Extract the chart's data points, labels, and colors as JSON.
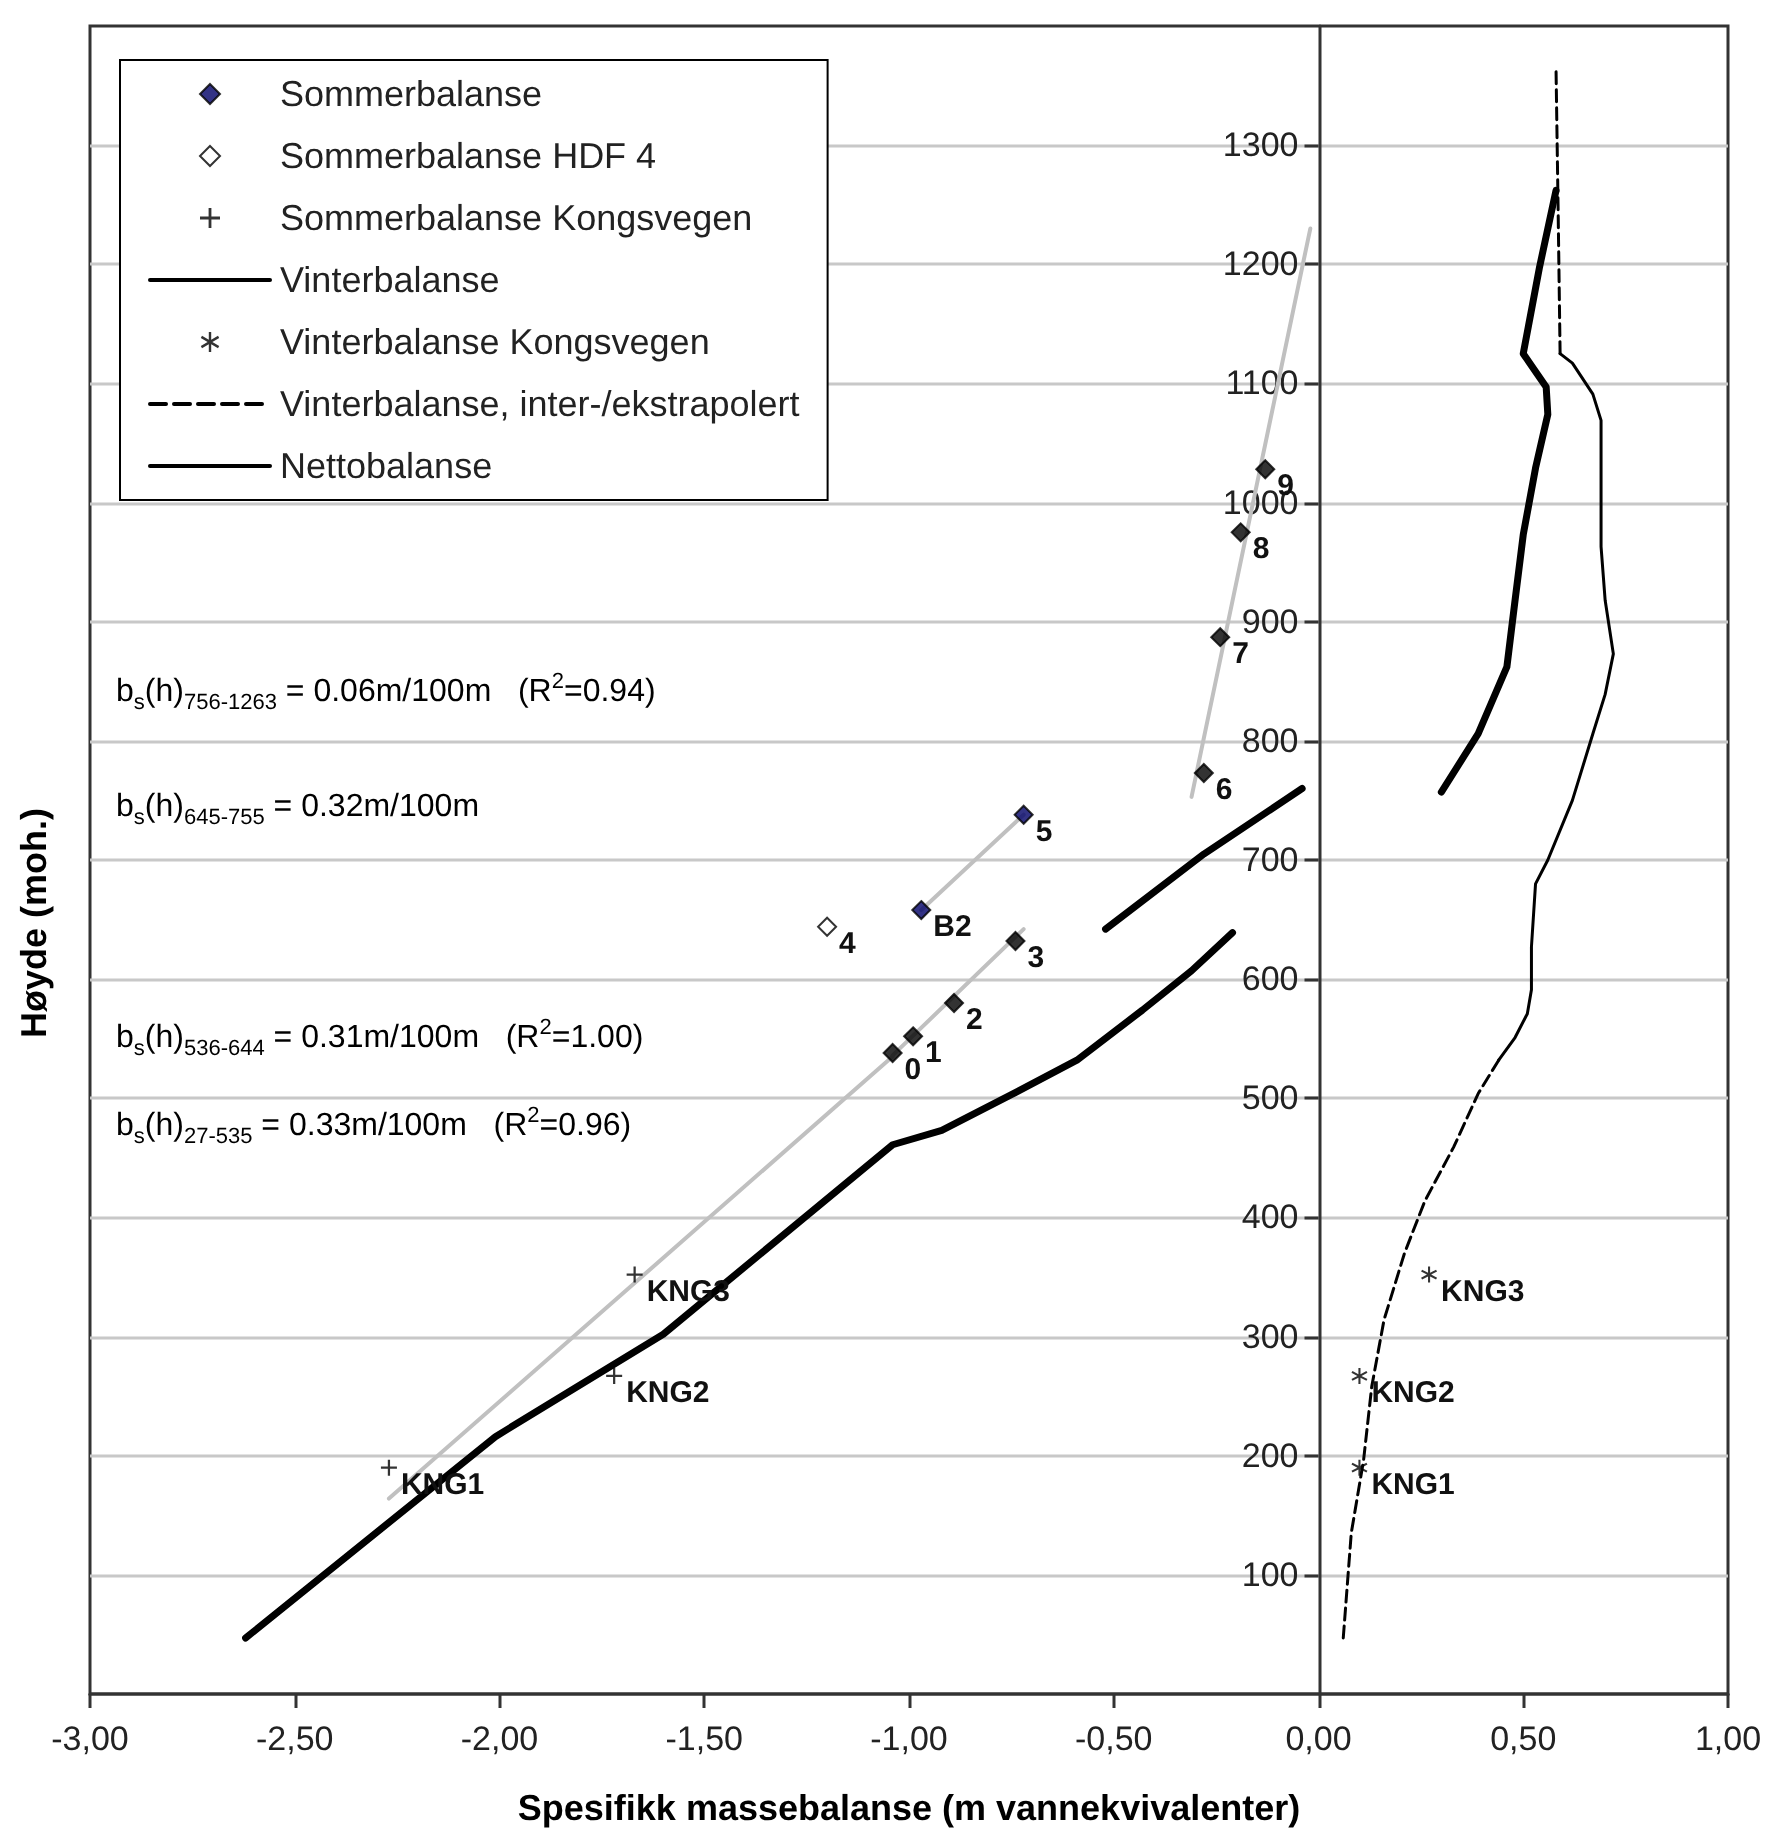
{
  "chart_data": {
    "type": "scatter",
    "xlabel": "Spesifikk massebalanse (m vannekvivalenter)",
    "ylabel": "Høyde (moh.)",
    "xlim": [
      -3,
      1
    ],
    "xticks": [
      {
        "value": -3,
        "label": "-3,00"
      },
      {
        "value": -2.5,
        "label": "-2,50"
      },
      {
        "value": -2,
        "label": "-2,00"
      },
      {
        "value": -1.5,
        "label": "-1,50"
      },
      {
        "value": -1,
        "label": "-1,00"
      },
      {
        "value": -0.5,
        "label": "-0,50"
      },
      {
        "value": 0,
        "label": "0,00"
      },
      {
        "value": 0.5,
        "label": "0,50"
      },
      {
        "value": 1,
        "label": "1,00"
      }
    ],
    "ylim": [
      0,
      1400
    ],
    "yticks": [
      100,
      200,
      300,
      400,
      500,
      600,
      700,
      800,
      900,
      1000,
      1100,
      1200,
      1300
    ],
    "grid": "y",
    "legend": "top left",
    "annotations": [
      "b$_{s}$(h)$_{756-1263}$ = 0.06m/100m   (R$^{2}$=0.94)",
      "b$_{s}$(h)$_{645-755}$ = 0.32m/100m",
      "b$_{s}$(h)$_{536-644}$ = 0.31m/100m   (R$^{2}$=1.00)",
      "b$_{s}$(h)$_{27-535}$ = 0.33m/100m   (R$^{2}$=0.96)",
      {
        "text": "0",
        "x": -1.04,
        "y": 538
      },
      {
        "text": "1",
        "x": -0.99,
        "y": 552
      },
      {
        "text": "2",
        "x": -0.89,
        "y": 580
      },
      {
        "text": "3",
        "x": -0.74,
        "y": 632
      },
      {
        "text": "B2",
        "x": -0.97,
        "y": 658
      },
      {
        "text": "5",
        "x": -0.72,
        "y": 738
      },
      {
        "text": "6",
        "x": -0.28,
        "y": 773
      },
      {
        "text": "7",
        "x": -0.24,
        "y": 887
      },
      {
        "text": "8",
        "x": -0.19,
        "y": 975
      },
      {
        "text": "9",
        "x": -0.13,
        "y": 1028
      },
      {
        "text": "4",
        "x": -1.2,
        "y": 644
      },
      {
        "text": "KNG3",
        "x": -1.67,
        "y": 352
      },
      {
        "text": "KNG2",
        "x": -1.72,
        "y": 267
      },
      {
        "text": "KNG1",
        "x": -2.27,
        "y": 190
      },
      {
        "text": "KNG3",
        "x": 0.27,
        "y": 352
      },
      {
        "text": "KNG2",
        "x": 0.1,
        "y": 267
      },
      {
        "text": "KNG1",
        "x": 0.1,
        "y": 190
      }
    ],
    "series": [
      {
        "name": "Sommerbalanse",
        "marker": "diamond",
        "color": "#000066",
        "colors": [
          "#000000",
          "#000000",
          "#000000",
          "#000000",
          "#000066",
          "#000066",
          "#000000",
          "#000000",
          "#000000",
          "#000000"
        ],
        "x": [
          -1.04,
          -0.99,
          -0.89,
          -0.74,
          -0.97,
          -0.72,
          -0.28,
          -0.24,
          -0.19,
          -0.13
        ],
        "values": [
          538,
          552,
          580,
          632,
          658,
          738,
          773,
          887,
          975,
          1028
        ]
      },
      {
        "name": "Sommerbalanse HDF 4",
        "marker": "diamond",
        "color": "#ffffff",
        "x": [
          -1.2
        ],
        "values": [
          644
        ]
      },
      {
        "name": "Sommerbalanse Kongsvegen",
        "marker": "cross",
        "color": "#000000",
        "x": [
          -1.67,
          -1.72,
          -2.27
        ],
        "values": [
          352,
          267,
          190
        ]
      },
      {
        "name": "Vinterbalanse",
        "type": "line",
        "marker": "none",
        "line_style": "solid",
        "color": "#000000",
        "x": [
          0.59,
          0.62,
          0.67,
          0.69,
          0.69,
          0.7,
          0.72,
          0.7,
          0.67,
          0.62,
          0.56,
          0.53,
          0.52,
          0.52,
          0.51,
          0.48,
          0.44
        ],
        "values": [
          1125,
          1117,
          1091,
          1069,
          963,
          918,
          873,
          839,
          806,
          750,
          700,
          680,
          627,
          591,
          571,
          551,
          532
        ]
      },
      {
        "name": "Vinterbalanse Kongsvegen",
        "marker": "star",
        "color": "#000000",
        "x": [
          0.27,
          0.1,
          0.1
        ],
        "values": [
          352,
          267,
          190
        ]
      },
      {
        "name": "Vinterbalanse, inter-/ekstrapolert",
        "type": "line",
        "marker": "none",
        "line_style": "dashed",
        "color": "#000000",
        "x": [
          0.44,
          0.39,
          0.33,
          0.26,
          0.21,
          0.16,
          0.13,
          0.11,
          0.08,
          0.06,
          null,
          0.59,
          0.585,
          0.58
        ],
        "values": [
          532,
          504,
          459,
          414,
          370,
          314,
          258,
          196,
          135,
          45,
          null,
          1125,
          1250,
          1365
        ]
      },
      {
        "name": "Nettobalanse",
        "type": "line",
        "marker": "none",
        "line_style": "solid",
        "color": "#000000",
        "x": [
          -2.62,
          -2.01,
          -1.6,
          -1.04,
          -0.92,
          -0.75,
          -0.59,
          -0.43,
          -0.31,
          -0.21,
          null,
          -0.52,
          -0.28,
          -0.04,
          null,
          0.3,
          0.39,
          0.46,
          0.48,
          0.5,
          0.53,
          0.56,
          0.556,
          0.5,
          0.54,
          0.58
        ],
        "values": [
          47,
          216,
          302,
          461,
          473,
          503,
          532,
          574,
          607,
          639,
          null,
          642,
          705,
          760,
          null,
          757,
          806,
          862,
          918,
          973,
          1029,
          1074,
          1097,
          1125,
          1198,
          1262
        ]
      },
      {
        "type": "line",
        "marker": "none",
        "line_style": "solid",
        "color": "#c0c0c0",
        "x": [
          -2.27,
          -1.04
        ],
        "values": [
          164,
          535
        ]
      },
      {
        "type": "line",
        "marker": "none",
        "line_style": "solid",
        "color": "#c0c0c0",
        "x": [
          -1.04,
          -0.72
        ],
        "values": [
          536,
          642
        ]
      },
      {
        "type": "line",
        "marker": "none",
        "line_style": "solid",
        "color": "#c0c0c0",
        "x": [
          -0.97,
          -0.72
        ],
        "values": [
          658,
          738
        ]
      },
      {
        "type": "line",
        "marker": "none",
        "line_style": "solid",
        "color": "#c0c0c0",
        "x": [
          -0.31,
          -0.02
        ],
        "values": [
          753,
          1230
        ]
      }
    ]
  }
}
